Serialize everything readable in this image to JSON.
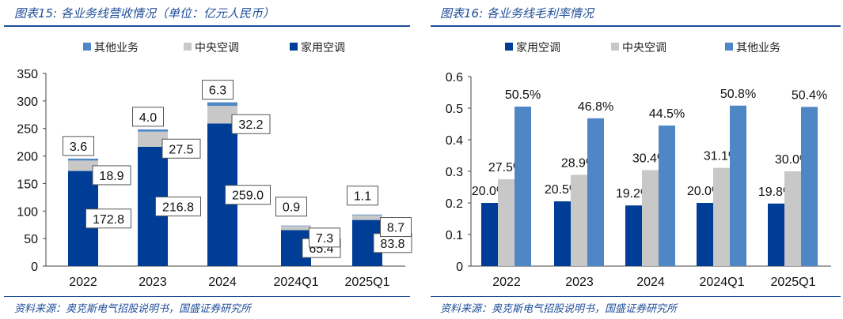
{
  "left": {
    "title": "图表15:  各业务线营收情况（单位：亿元人民币）",
    "source": "资料来源：奥克斯电气招股说明书，国盛证券研究所"
  },
  "right": {
    "title": "图表16:  各业务线毛利率情况",
    "source": "资料来源：奥克斯电气招股说明书，国盛证券研究所"
  },
  "chart_data": [
    {
      "type": "bar",
      "stacked": true,
      "title": "各业务线营收情况（单位：亿元人民币）",
      "categories": [
        "2022",
        "2023",
        "2024",
        "2024Q1",
        "2025Q1"
      ],
      "series": [
        {
          "name": "家用空调",
          "color": "#003d96",
          "values": [
            172.8,
            216.8,
            259.0,
            65.4,
            83.8
          ]
        },
        {
          "name": "中央空调",
          "color": "#c8c8c8",
          "values": [
            18.9,
            27.5,
            32.2,
            7.3,
            8.7
          ]
        },
        {
          "name": "其他业务",
          "color": "#4f86c6",
          "values": [
            3.6,
            4.0,
            6.3,
            0.9,
            1.1
          ]
        }
      ],
      "legend_order": [
        "其他业务",
        "中央空调",
        "家用空调"
      ],
      "ylim": [
        0,
        350
      ],
      "yticks": [
        0,
        50,
        100,
        150,
        200,
        250,
        300,
        350
      ],
      "legend": "top"
    },
    {
      "type": "bar",
      "title": "各业务线毛利率情况",
      "categories": [
        "2022",
        "2023",
        "2024",
        "2024Q1",
        "2025Q1"
      ],
      "series": [
        {
          "name": "家用空调",
          "color": "#003d96",
          "values": [
            0.2,
            0.205,
            0.192,
            0.2,
            0.198
          ],
          "labels": [
            "20.0%",
            "20.5%",
            "19.2%",
            "20.0%",
            "19.8%"
          ]
        },
        {
          "name": "中央空调",
          "color": "#c8c8c8",
          "values": [
            0.275,
            0.289,
            0.304,
            0.311,
            0.3
          ],
          "labels": [
            "27.5%",
            "28.9%",
            "30.4%",
            "31.1%",
            "30.0%"
          ]
        },
        {
          "name": "其他业务",
          "color": "#4f86c6",
          "values": [
            0.505,
            0.468,
            0.445,
            0.508,
            0.504
          ],
          "labels": [
            "50.5%",
            "46.8%",
            "44.5%",
            "50.8%",
            "50.4%"
          ]
        }
      ],
      "ylim": [
        0,
        0.6
      ],
      "yticks": [
        "0",
        "0.1",
        "0.2",
        "0.3",
        "0.4",
        "0.5",
        "0.6"
      ],
      "legend": "top"
    }
  ]
}
